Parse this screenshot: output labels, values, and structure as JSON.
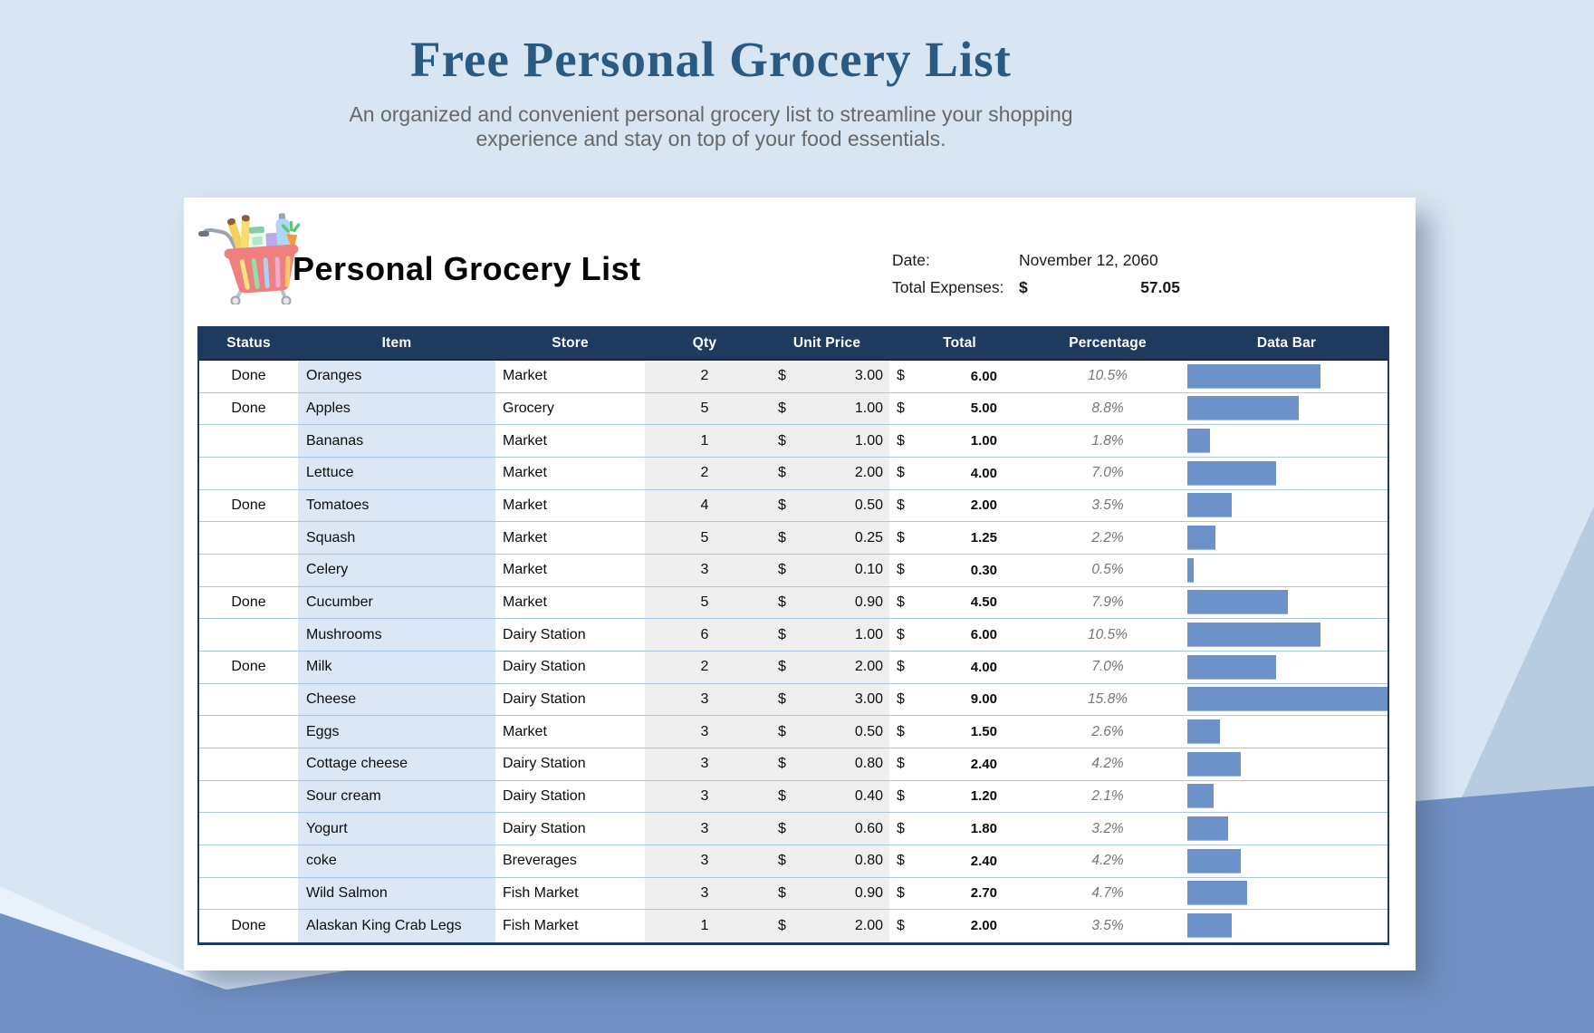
{
  "page": {
    "title": "Free Personal Grocery List",
    "subtitle_line1": "An organized and convenient personal grocery list to streamline your shopping",
    "subtitle_line2": "experience and stay on top of your food essentials."
  },
  "card": {
    "title": "Personal Grocery List",
    "cart_icon": "grocery-cart-icon",
    "date_label": "Date:",
    "date_value": "November 12, 2060",
    "total_label": "Total Expenses:",
    "currency_symbol": "$",
    "total_value": "57.05"
  },
  "table": {
    "columns": [
      "Status",
      "Item",
      "Store",
      "Qty",
      "Unit Price",
      "Total",
      "Percentage",
      "Data Bar"
    ],
    "rows": [
      {
        "status": "Done",
        "item": "Oranges",
        "store": "Market",
        "qty": "2",
        "currency": "$",
        "unit_price": "3.00",
        "total": "6.00",
        "percentage": "10.5%"
      },
      {
        "status": "Done",
        "item": "Apples",
        "store": "Grocery",
        "qty": "5",
        "currency": "$",
        "unit_price": "1.00",
        "total": "5.00",
        "percentage": "8.8%"
      },
      {
        "status": "",
        "item": "Bananas",
        "store": "Market",
        "qty": "1",
        "currency": "$",
        "unit_price": "1.00",
        "total": "1.00",
        "percentage": "1.8%"
      },
      {
        "status": "",
        "item": "Lettuce",
        "store": "Market",
        "qty": "2",
        "currency": "$",
        "unit_price": "2.00",
        "total": "4.00",
        "percentage": "7.0%"
      },
      {
        "status": "Done",
        "item": "Tomatoes",
        "store": "Market",
        "qty": "4",
        "currency": "$",
        "unit_price": "0.50",
        "total": "2.00",
        "percentage": "3.5%"
      },
      {
        "status": "",
        "item": "Squash",
        "store": "Market",
        "qty": "5",
        "currency": "$",
        "unit_price": "0.25",
        "total": "1.25",
        "percentage": "2.2%"
      },
      {
        "status": "",
        "item": "Celery",
        "store": "Market",
        "qty": "3",
        "currency": "$",
        "unit_price": "0.10",
        "total": "0.30",
        "percentage": "0.5%"
      },
      {
        "status": "Done",
        "item": "Cucumber",
        "store": "Market",
        "qty": "5",
        "currency": "$",
        "unit_price": "0.90",
        "total": "4.50",
        "percentage": "7.9%"
      },
      {
        "status": "",
        "item": "Mushrooms",
        "store": "Dairy Station",
        "qty": "6",
        "currency": "$",
        "unit_price": "1.00",
        "total": "6.00",
        "percentage": "10.5%"
      },
      {
        "status": "Done",
        "item": "Milk",
        "store": "Dairy Station",
        "qty": "2",
        "currency": "$",
        "unit_price": "2.00",
        "total": "4.00",
        "percentage": "7.0%"
      },
      {
        "status": "",
        "item": "Cheese",
        "store": "Dairy Station",
        "qty": "3",
        "currency": "$",
        "unit_price": "3.00",
        "total": "9.00",
        "percentage": "15.8%"
      },
      {
        "status": "",
        "item": "Eggs",
        "store": "Market",
        "qty": "3",
        "currency": "$",
        "unit_price": "0.50",
        "total": "1.50",
        "percentage": "2.6%"
      },
      {
        "status": "",
        "item": "Cottage cheese",
        "store": "Dairy Station",
        "qty": "3",
        "currency": "$",
        "unit_price": "0.80",
        "total": "2.40",
        "percentage": "4.2%"
      },
      {
        "status": "",
        "item": "Sour cream",
        "store": "Dairy Station",
        "qty": "3",
        "currency": "$",
        "unit_price": "0.40",
        "total": "1.20",
        "percentage": "2.1%"
      },
      {
        "status": "",
        "item": "Yogurt",
        "store": "Dairy Station",
        "qty": "3",
        "currency": "$",
        "unit_price": "0.60",
        "total": "1.80",
        "percentage": "3.2%"
      },
      {
        "status": "",
        "item": "coke",
        "store": "Breverages",
        "qty": "3",
        "currency": "$",
        "unit_price": "0.80",
        "total": "2.40",
        "percentage": "4.2%"
      },
      {
        "status": "",
        "item": "Wild Salmon",
        "store": "Fish Market",
        "qty": "3",
        "currency": "$",
        "unit_price": "0.90",
        "total": "2.70",
        "percentage": "4.7%"
      },
      {
        "status": "Done",
        "item": "Alaskan King Crab Legs",
        "store": "Fish Market",
        "qty": "1",
        "currency": "$",
        "unit_price": "2.00",
        "total": "2.00",
        "percentage": "3.5%"
      }
    ]
  },
  "colors": {
    "page_background": "#D8E5F2",
    "wave_blue": "#7191C5",
    "band_blue_gray": "#B7CBE1",
    "title_blue": "#2A5A82",
    "header_navy": "#1F3A5F",
    "row_separator": "#A9C6E7",
    "item_column_bg": "#DBE7F5",
    "qty_price_column_bg": "#EFEFEF",
    "data_bar": "#6D92C9"
  }
}
